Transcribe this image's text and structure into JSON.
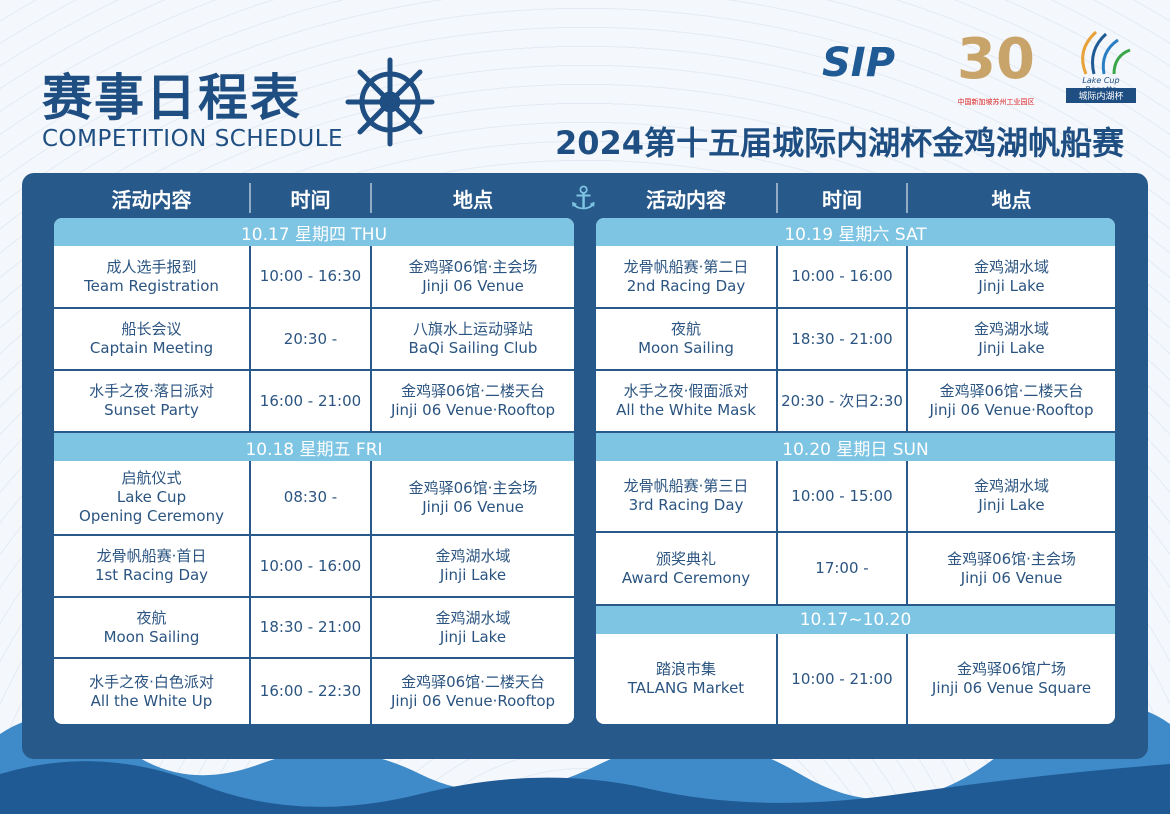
{
  "header": {
    "title_cn": "赛事日程表",
    "title_en": "COMPETITION SCHEDULE",
    "event_title": "2024第十五届城际内湖杯金鸡湖帆船赛"
  },
  "logos": {
    "sip": "SIP",
    "thirty": "30",
    "thirty_caption": "中国新加坡苏州工业园区",
    "lakecup_en": "Lake Cup Regatta",
    "lakecup_cn": "城际内湖杯"
  },
  "colors": {
    "panel": "#27598a",
    "day_header": "#7ec4e3",
    "text": "#2b5480"
  },
  "columns": [
    "活动内容",
    "时间",
    "地点"
  ],
  "left": [
    {
      "day": "10.17 星期四 THU",
      "rows": [
        {
          "h": 63,
          "event": [
            "成人选手报到",
            "Team Registration"
          ],
          "time": "10:00 - 16:30",
          "place": [
            "金鸡驿06馆·主会场",
            "Jinji 06 Venue"
          ]
        },
        {
          "h": 62,
          "event": [
            "船长会议",
            "Captain Meeting"
          ],
          "time": "20:30 -",
          "place": [
            "八旗水上运动驿站",
            "BaQi Sailing Club"
          ]
        },
        {
          "h": 62,
          "event": [
            "水手之夜·落日派对",
            "Sunset Party"
          ],
          "time": "16:00 - 21:00",
          "place": [
            "金鸡驿06馆·二楼天台",
            "Jinji 06 Venue·Rooftop"
          ]
        }
      ]
    },
    {
      "day": "10.18 星期五 FRI",
      "rows": [
        {
          "h": 75,
          "event": [
            "启航仪式",
            "Lake Cup",
            "Opening Ceremony"
          ],
          "time": "08:30 -",
          "place": [
            "金鸡驿06馆·主会场",
            "Jinji 06 Venue"
          ]
        },
        {
          "h": 62,
          "event": [
            "龙骨帆船赛·首日",
            "1st Racing Day"
          ],
          "time": "10:00 - 16:00",
          "place": [
            "金鸡湖水域",
            "Jinji Lake"
          ]
        },
        {
          "h": 61,
          "event": [
            "夜航",
            "Moon Sailing"
          ],
          "time": "18:30 - 21:00",
          "place": [
            "金鸡湖水域",
            "Jinji Lake"
          ]
        },
        {
          "h": 65,
          "event": [
            "水手之夜·白色派对",
            "All the White Up"
          ],
          "time": "16:00 - 22:30",
          "place": [
            "金鸡驿06馆·二楼天台",
            "Jinji 06 Venue·Rooftop"
          ]
        }
      ]
    }
  ],
  "right": [
    {
      "day": "10.19 星期六 SAT",
      "rows": [
        {
          "h": 63,
          "event": [
            "龙骨帆船赛·第二日",
            "2nd Racing Day"
          ],
          "time": "10:00 - 16:00",
          "place": [
            "金鸡湖水域",
            "Jinji Lake"
          ]
        },
        {
          "h": 62,
          "event": [
            "夜航",
            "Moon Sailing"
          ],
          "time": "18:30 - 21:00",
          "place": [
            "金鸡湖水域",
            "Jinji Lake"
          ]
        },
        {
          "h": 62,
          "event": [
            "水手之夜·假面派对",
            "All the White Mask"
          ],
          "time": "20:30 - 次日2:30",
          "place": [
            "金鸡驿06馆·二楼天台",
            "Jinji 06 Venue·Rooftop"
          ]
        }
      ]
    },
    {
      "day": "10.20 星期日 SUN",
      "rows": [
        {
          "h": 72,
          "event": [
            "龙骨帆船赛·第三日",
            "3rd Racing Day"
          ],
          "time": "10:00 - 15:00",
          "place": [
            "金鸡湖水域",
            "Jinji Lake"
          ]
        },
        {
          "h": 73,
          "event": [
            "颁奖典礼",
            "Award Ceremony"
          ],
          "time": "17:00 -",
          "place": [
            "金鸡驿06馆·主会场",
            "Jinji 06 Venue"
          ]
        }
      ]
    },
    {
      "day": "10.17~10.20",
      "rows": [
        {
          "h": 90,
          "event": [
            "踏浪市集",
            "TALANG Market"
          ],
          "time": "10:00 - 21:00",
          "place": [
            "金鸡驿06馆广场",
            "Jinji 06 Venue Square"
          ]
        }
      ]
    }
  ]
}
